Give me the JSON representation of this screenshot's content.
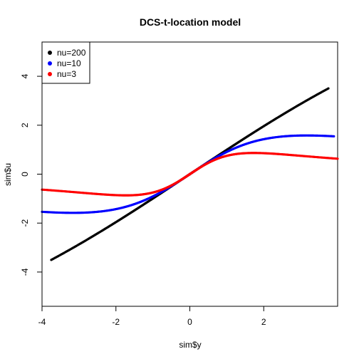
{
  "chart_data": {
    "type": "scatter",
    "title": "DCS-t-location model",
    "xlabel": "sim$y",
    "ylabel": "sim$u",
    "xlim": [
      -4,
      4
    ],
    "ylim": [
      -5.4,
      5.4
    ],
    "xticks": [
      -4,
      -2,
      0,
      2
    ],
    "yticks": [
      -4,
      -2,
      0,
      2,
      4
    ],
    "xtick_labels": [
      "-4",
      "-2",
      "0",
      "2"
    ],
    "ytick_labels": [
      "-4",
      "-2",
      "0",
      "2",
      "4"
    ],
    "grid": false,
    "legend": {
      "placement": "top-left",
      "entries": [
        "nu=200",
        "nu=10",
        "nu=3"
      ]
    },
    "series": [
      {
        "name": "nu=200",
        "color": "#000000",
        "nu": 200,
        "x_range": [
          -3.75,
          3.75
        ]
      },
      {
        "name": "nu=10",
        "color": "#0000ff",
        "nu": 10,
        "x_range": [
          -4.0,
          3.9
        ]
      },
      {
        "name": "nu=3",
        "color": "#ff0000",
        "nu": 3,
        "x_range": [
          -4.0,
          4.0
        ]
      }
    ]
  }
}
